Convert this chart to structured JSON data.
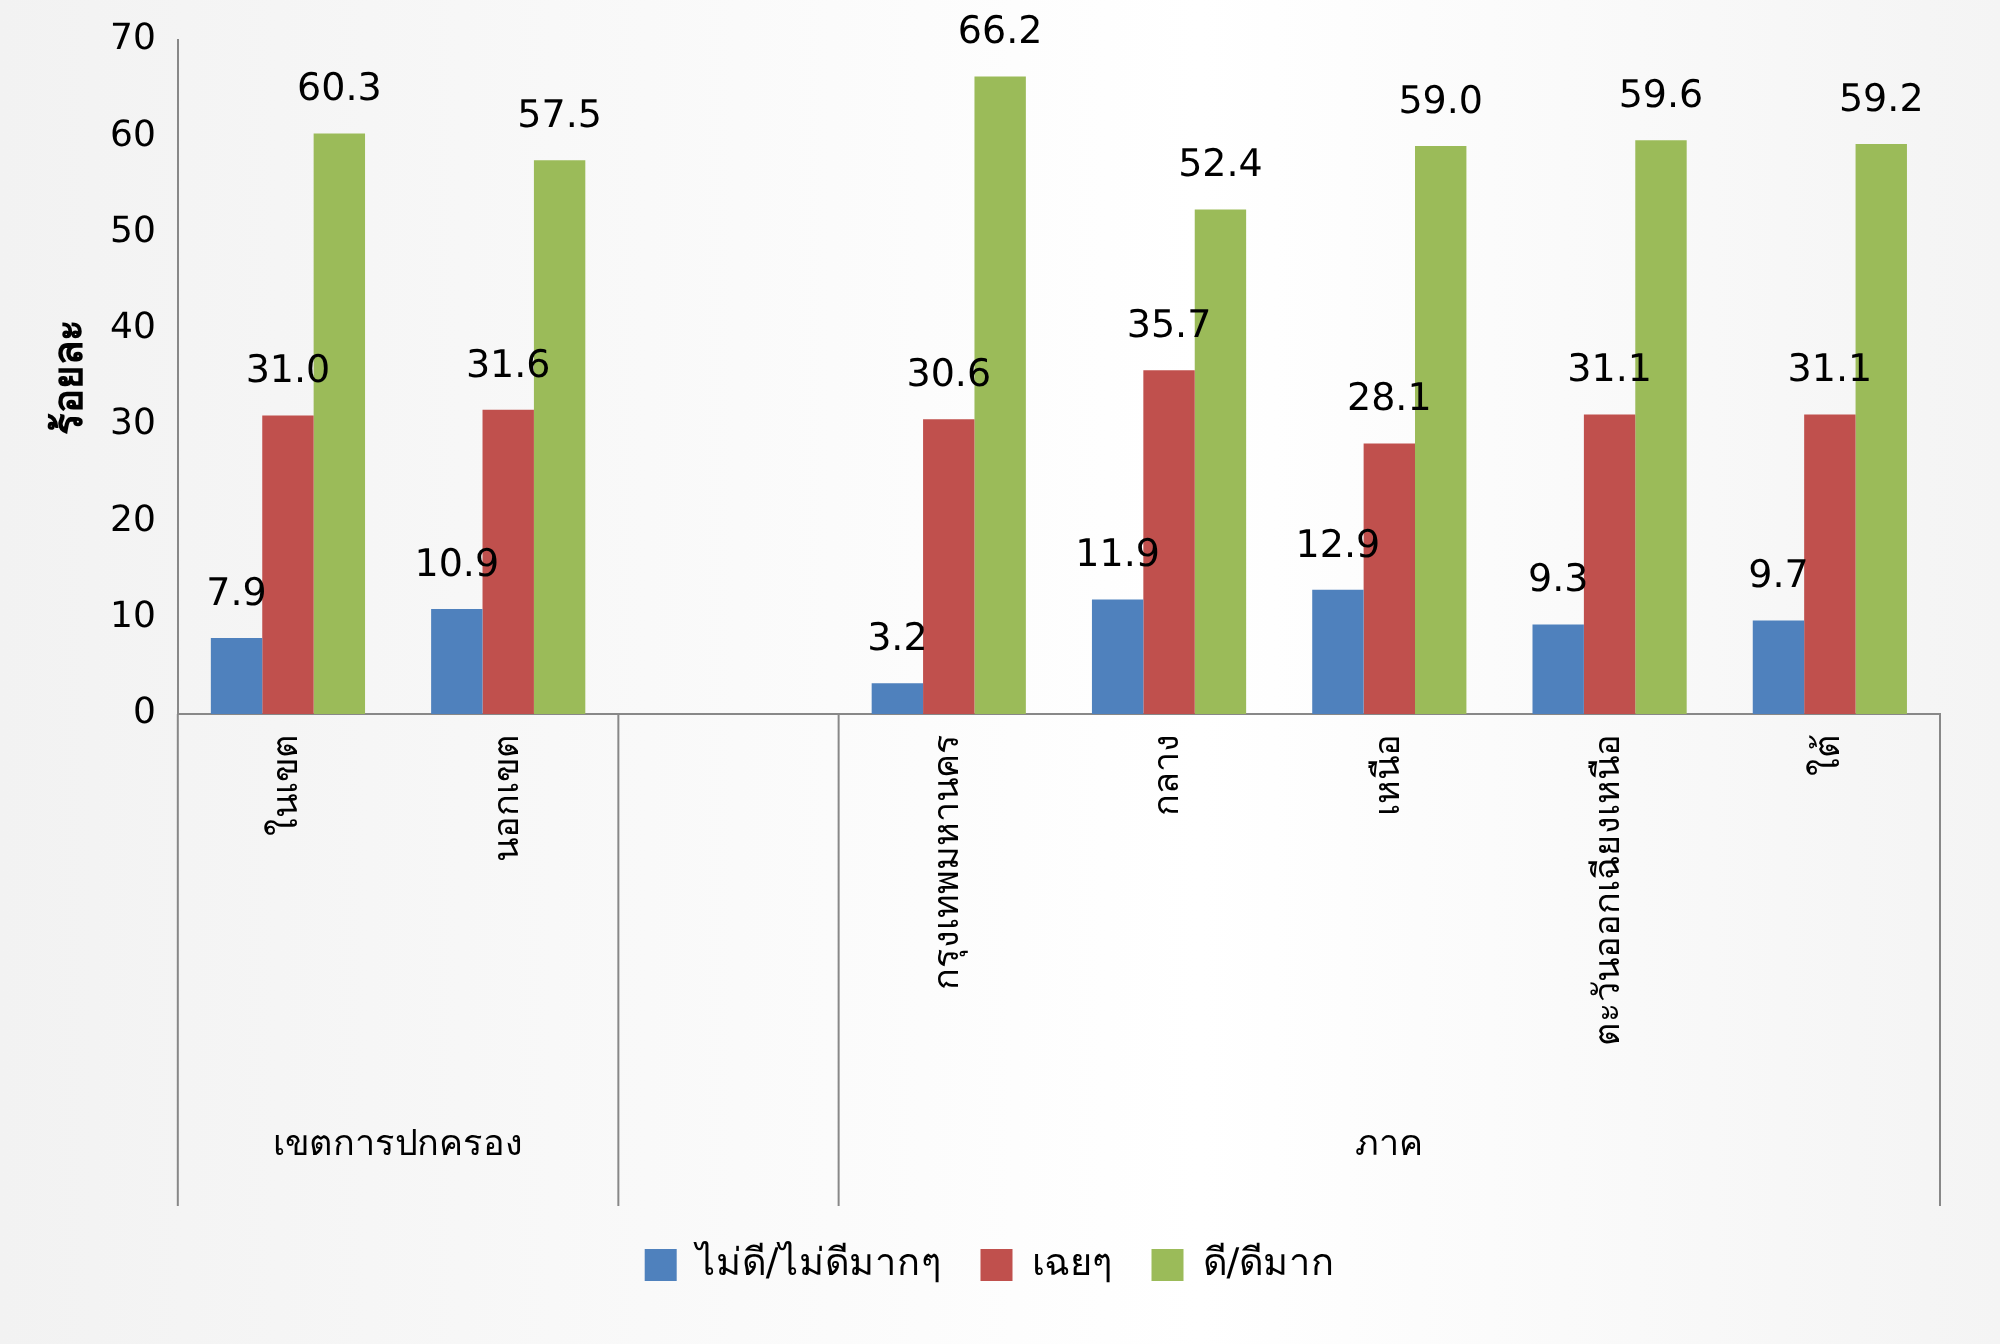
{
  "chart_data": {
    "type": "bar",
    "ylabel": "ร้อยละ",
    "categories": [
      "ในเขต",
      "นอกเขต",
      null,
      "กรุงเทพมหานคร",
      "กลาง",
      "เหนือ",
      "ตะวันออกเฉียงเหนือ",
      "ใต้"
    ],
    "series": [
      {
        "name": "ไม่ดี/ไม่ดีมากๆ",
        "color": "#4f81bd",
        "values": [
          7.9,
          10.9,
          null,
          3.2,
          11.9,
          12.9,
          9.3,
          9.7
        ],
        "value_labels": [
          "7.9",
          "10.9",
          null,
          "3.2",
          "11.9",
          "12.9",
          "9.3",
          "9.7"
        ]
      },
      {
        "name": "เฉยๆ",
        "color": "#c0504d",
        "values": [
          31.0,
          31.6,
          null,
          30.6,
          35.7,
          28.1,
          31.1,
          31.1
        ],
        "value_labels": [
          "31.0",
          "31.6",
          null,
          "30.6",
          "35.7",
          "28.1",
          "31.1",
          "31.1"
        ]
      },
      {
        "name": "ดี/ดีมาก",
        "color": "#9bbb59",
        "values": [
          60.3,
          57.5,
          null,
          66.2,
          52.4,
          59.0,
          59.6,
          59.2
        ],
        "value_labels": [
          "60.3",
          "57.5",
          null,
          "66.2",
          "52.4",
          "59.0",
          "59.6",
          "59.2"
        ]
      }
    ],
    "annotations": [
      "เขตการปกครอง",
      "ภาค"
    ],
    "ylim": [
      0,
      70
    ],
    "yticks": [
      0,
      10,
      20,
      30,
      40,
      50,
      60,
      70
    ],
    "grid": false,
    "legend": "bottom"
  }
}
